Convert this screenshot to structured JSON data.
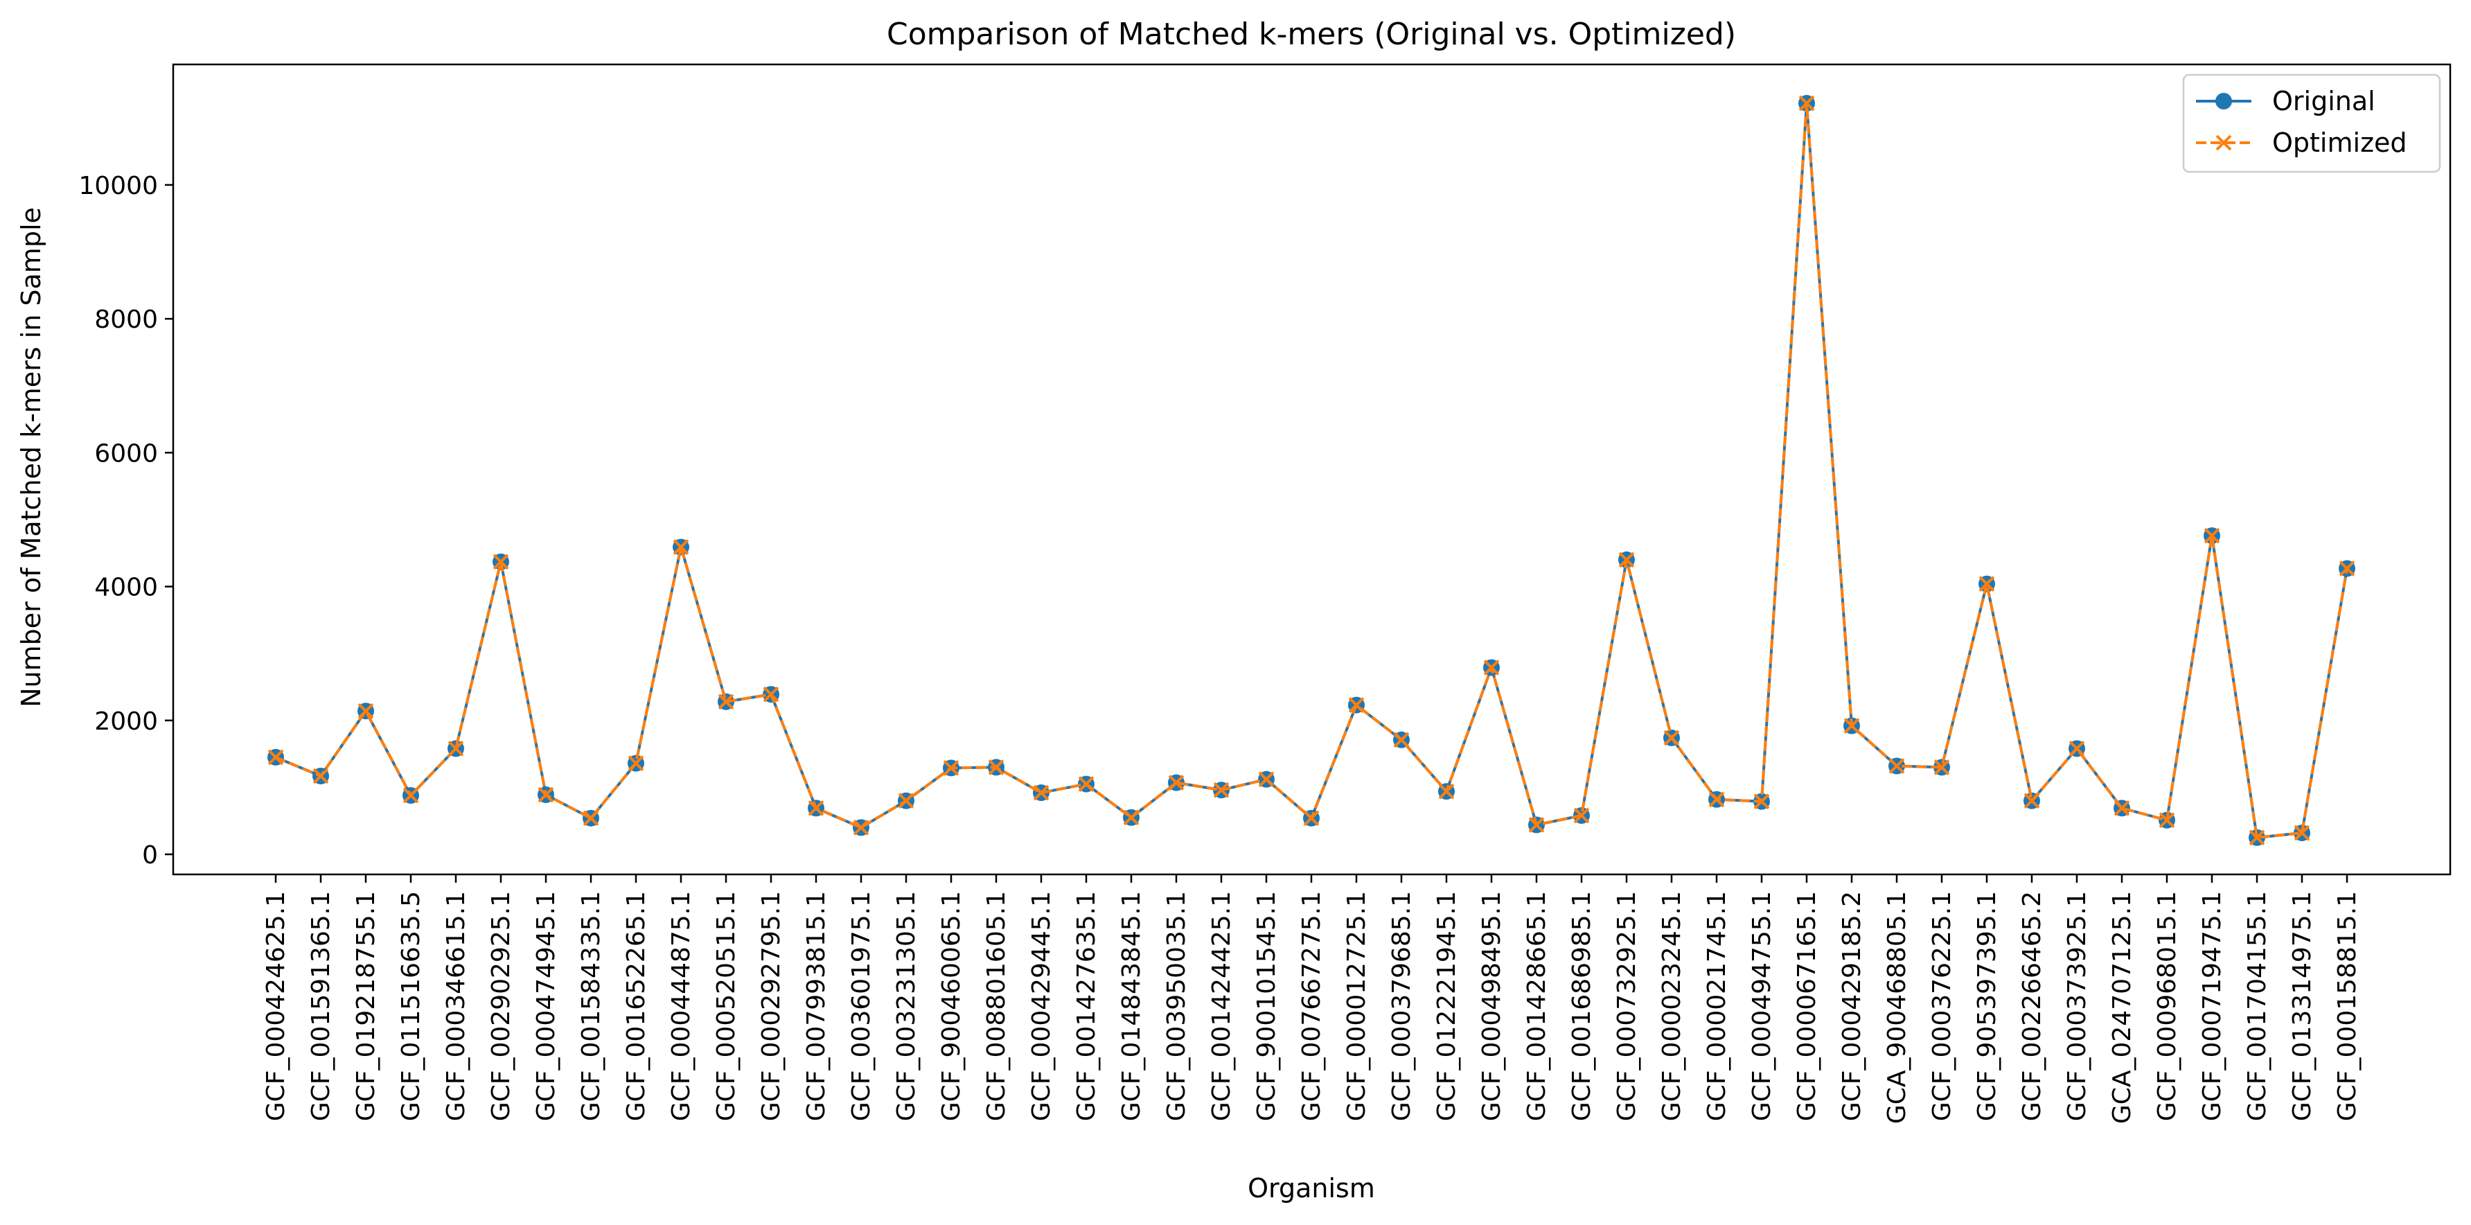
{
  "chart_data": {
    "type": "line",
    "title": "Comparison of Matched k-mers (Original vs. Optimized)",
    "xlabel": "Organism",
    "ylabel": "Number of Matched k-mers in Sample",
    "ylim": [
      -300,
      11800
    ],
    "yticks": [
      0,
      2000,
      4000,
      6000,
      8000,
      10000
    ],
    "grid": false,
    "legend_position": "top-right",
    "categories": [
      "GCF_000424625.1",
      "GCF_001591365.1",
      "GCF_019218755.1",
      "GCF_011516635.5",
      "GCF_000346615.1",
      "GCF_002902925.1",
      "GCF_000474945.1",
      "GCF_001584335.1",
      "GCF_001652265.1",
      "GCF_000444875.1",
      "GCF_000520515.1",
      "GCF_000292795.1",
      "GCF_007993815.1",
      "GCF_003601975.1",
      "GCF_003231305.1",
      "GCF_900460065.1",
      "GCF_008801605.1",
      "GCF_000429445.1",
      "GCF_001427635.1",
      "GCF_014843845.1",
      "GCF_003950035.1",
      "GCF_001424425.1",
      "GCF_900101545.1",
      "GCF_007667275.1",
      "GCF_000012725.1",
      "GCF_000379685.1",
      "GCF_012221945.1",
      "GCF_000498495.1",
      "GCF_001428665.1",
      "GCF_001686985.1",
      "GCF_000732925.1",
      "GCF_000023245.1",
      "GCF_000021745.1",
      "GCF_000494755.1",
      "GCF_000067165.1",
      "GCF_000429185.2",
      "GCA_900468805.1",
      "GCF_000376225.1",
      "GCF_905397395.1",
      "GCF_002266465.2",
      "GCF_000373925.1",
      "GCA_024707125.1",
      "GCF_000968015.1",
      "GCF_000719475.1",
      "GCF_001704155.1",
      "GCF_013314975.1",
      "GCF_000158815.1"
    ],
    "series": [
      {
        "name": "Original",
        "color": "#1f77b4",
        "line_style": "solid",
        "marker": "circle",
        "values": [
          1450,
          1170,
          2140,
          880,
          1580,
          4370,
          890,
          540,
          1360,
          4590,
          2280,
          2390,
          690,
          400,
          800,
          1290,
          1300,
          920,
          1050,
          550,
          1070,
          960,
          1120,
          540,
          2230,
          1710,
          940,
          2790,
          440,
          580,
          4400,
          1740,
          820,
          790,
          11220,
          1920,
          1320,
          1300,
          4040,
          800,
          1580,
          690,
          510,
          4760,
          250,
          320,
          4270
        ]
      },
      {
        "name": "Optimized",
        "color": "#ff7f0e",
        "line_style": "dashed",
        "marker": "x",
        "values": [
          1450,
          1170,
          2140,
          880,
          1580,
          4370,
          890,
          540,
          1360,
          4590,
          2280,
          2390,
          690,
          400,
          800,
          1290,
          1300,
          920,
          1050,
          550,
          1070,
          960,
          1120,
          540,
          2230,
          1710,
          940,
          2790,
          440,
          580,
          4400,
          1740,
          820,
          790,
          11220,
          1920,
          1320,
          1300,
          4040,
          800,
          1580,
          690,
          510,
          4760,
          250,
          320,
          4270
        ]
      }
    ]
  }
}
